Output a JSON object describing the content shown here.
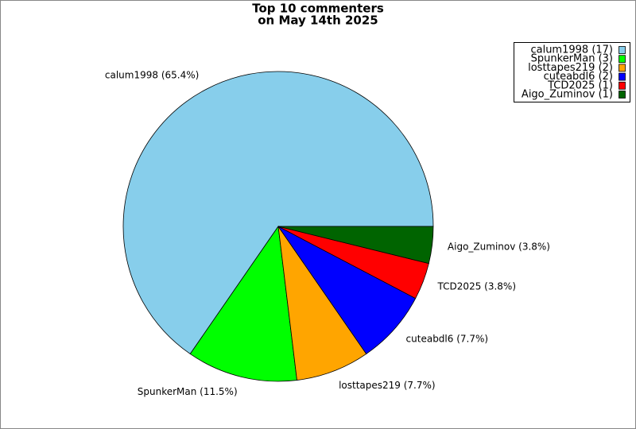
{
  "chart_data": {
    "type": "pie",
    "title": [
      "Top 10 commenters",
      "on May 14th 2025"
    ],
    "categories": [
      "calum1998",
      "SpunkerMan",
      "losttapes219",
      "cuteabdl6",
      "TCD2025",
      "Aigo_Zuminov"
    ],
    "values": [
      17,
      3,
      2,
      2,
      1,
      1
    ],
    "slice_labels": [
      "calum1998 (65.4%)",
      "SpunkerMan (11.5%)",
      "losttapes219 (7.7%)",
      "cuteabdl6 (7.7%)",
      "TCD2025 (3.8%)",
      "Aigo_Zuminov (3.8%)"
    ],
    "legend_labels": [
      "calum1998 (17)",
      "SpunkerMan (3)",
      "losttapes219 (2)",
      "cuteabdl6 (2)",
      "TCD2025 (1)",
      "Aigo_Zuminov (1)"
    ],
    "colors": [
      "#87ceeb",
      "#00ff00",
      "#ffa500",
      "#0000ff",
      "#ff0000",
      "#006400"
    ],
    "legend": "upper right"
  }
}
